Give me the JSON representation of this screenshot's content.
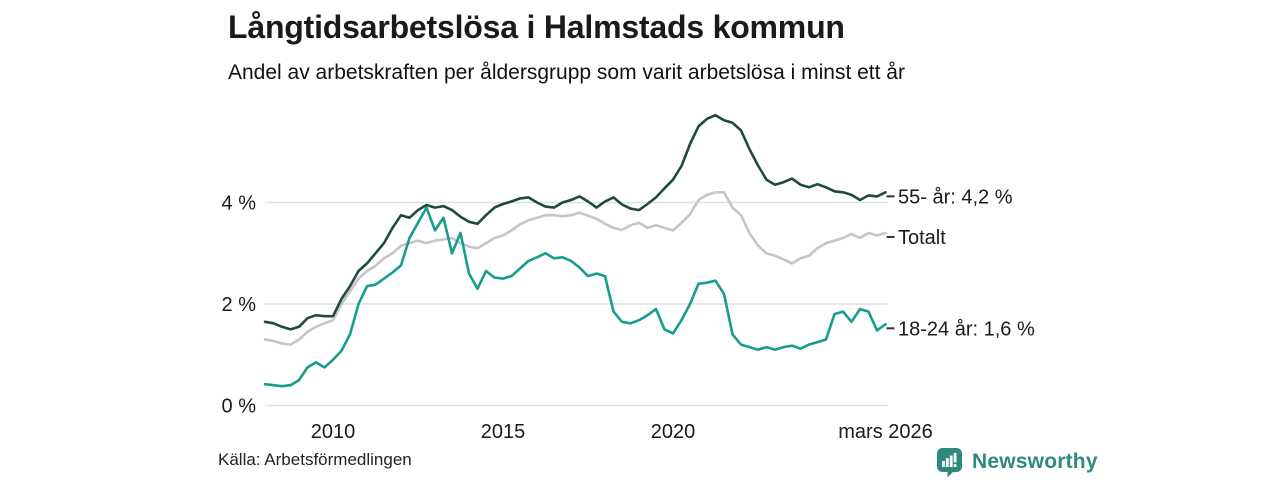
{
  "header": {
    "title": "Långtidsarbetslösa i Halmstads kommun",
    "subtitle": "Andel av arbetskraften per åldersgrupp som varit arbetslösa i minst ett år"
  },
  "footer": {
    "source": "Källa: Arbetsförmedlingen",
    "brand": "Newsworthy",
    "brand_icon": "bar-chart-pin-icon"
  },
  "colors": {
    "series_55": "#214a3e",
    "series_totalt": "#c5c4cb",
    "series_18_24": "#169d8c",
    "gridline": "#dfdfe3",
    "text": "#1a1a1a",
    "brand_teal": "#2e8a7c"
  },
  "chart_data": {
    "type": "line",
    "title": "Långtidsarbetslösa i Halmstads kommun",
    "subtitle": "Andel av arbetskraften per åldersgrupp som varit arbetslösa i minst ett år",
    "unit": "% av arbetskraften",
    "grid": "horizontal",
    "legend_position": "end-of-line-labels",
    "x_axis": {
      "start": 2008,
      "end": 2026.25,
      "ticks": [
        {
          "value": 2010,
          "label": "2010"
        },
        {
          "value": 2015,
          "label": "2015"
        },
        {
          "value": 2020,
          "label": "2020"
        },
        {
          "value": 2026.25,
          "label": "mars 2026"
        }
      ]
    },
    "y_axis": {
      "min": 0,
      "max": 6.2,
      "ticks": [
        {
          "value": 0,
          "label": "0 %"
        },
        {
          "value": 2,
          "label": "2 %"
        },
        {
          "value": 4,
          "label": "4 %"
        }
      ]
    },
    "end_dash": "–",
    "series": [
      {
        "name": "55- år",
        "end_label": "55- år: 4,2 %",
        "color": "#214a3e",
        "start_year": 2008,
        "step": 0.25,
        "values": [
          1.65,
          1.62,
          1.55,
          1.5,
          1.55,
          1.72,
          1.78,
          1.76,
          1.76,
          2.1,
          2.35,
          2.65,
          2.8,
          3.0,
          3.2,
          3.5,
          3.75,
          3.7,
          3.85,
          3.95,
          3.9,
          3.93,
          3.85,
          3.72,
          3.62,
          3.58,
          3.75,
          3.9,
          3.97,
          4.02,
          4.08,
          4.1,
          4.0,
          3.92,
          3.9,
          4.0,
          4.05,
          4.12,
          4.02,
          3.9,
          4.02,
          4.1,
          3.96,
          3.88,
          3.85,
          3.97,
          4.1,
          4.28,
          4.45,
          4.72,
          5.15,
          5.5,
          5.65,
          5.72,
          5.62,
          5.57,
          5.42,
          5.05,
          4.73,
          4.45,
          4.35,
          4.4,
          4.47,
          4.35,
          4.3,
          4.36,
          4.3,
          4.22,
          4.2,
          4.15,
          4.05,
          4.14,
          4.12,
          4.2
        ]
      },
      {
        "name": "Totalt",
        "end_label": "Totalt",
        "color": "#c5c4cb",
        "start_year": 2008,
        "step": 0.25,
        "values": [
          1.3,
          1.27,
          1.22,
          1.2,
          1.3,
          1.45,
          1.55,
          1.62,
          1.68,
          2.0,
          2.25,
          2.5,
          2.65,
          2.75,
          2.9,
          3.0,
          3.15,
          3.2,
          3.25,
          3.2,
          3.25,
          3.27,
          3.3,
          3.2,
          3.13,
          3.1,
          3.2,
          3.3,
          3.35,
          3.45,
          3.57,
          3.65,
          3.7,
          3.75,
          3.75,
          3.73,
          3.75,
          3.8,
          3.74,
          3.68,
          3.58,
          3.5,
          3.46,
          3.55,
          3.6,
          3.5,
          3.55,
          3.5,
          3.45,
          3.6,
          3.77,
          4.05,
          4.15,
          4.2,
          4.2,
          3.9,
          3.75,
          3.4,
          3.15,
          3.0,
          2.95,
          2.88,
          2.8,
          2.9,
          2.95,
          3.1,
          3.2,
          3.25,
          3.3,
          3.38,
          3.3,
          3.4,
          3.35,
          3.4
        ]
      },
      {
        "name": "18-24 år",
        "end_label": "18-24 år: 1,6 %",
        "color": "#169d8c",
        "start_year": 2008,
        "step": 0.25,
        "values": [
          0.42,
          0.4,
          0.38,
          0.4,
          0.5,
          0.75,
          0.85,
          0.75,
          0.9,
          1.08,
          1.4,
          2.0,
          2.35,
          2.38,
          2.5,
          2.62,
          2.76,
          3.3,
          3.6,
          3.9,
          3.45,
          3.7,
          3.0,
          3.4,
          2.6,
          2.3,
          2.65,
          2.52,
          2.5,
          2.55,
          2.7,
          2.85,
          2.92,
          3.0,
          2.9,
          2.92,
          2.85,
          2.72,
          2.55,
          2.6,
          2.55,
          1.85,
          1.65,
          1.62,
          1.68,
          1.78,
          1.9,
          1.5,
          1.42,
          1.68,
          2.0,
          2.4,
          2.42,
          2.46,
          2.2,
          1.4,
          1.2,
          1.15,
          1.1,
          1.15,
          1.1,
          1.15,
          1.18,
          1.12,
          1.2,
          1.25,
          1.3,
          1.8,
          1.85,
          1.65,
          1.9,
          1.85,
          1.48,
          1.6
        ]
      }
    ]
  }
}
